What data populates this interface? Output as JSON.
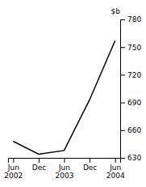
{
  "chart_data": {
    "type": "line",
    "categories": [
      "Jun\n2002",
      "Dec",
      "Jun\n2003",
      "Dec",
      "Jun\n2004"
    ],
    "values": [
      648,
      634,
      638,
      693,
      757
    ],
    "color": "#000000",
    "ylabel": "$b",
    "ylim": [
      630,
      780
    ],
    "yticks": [
      630,
      660,
      690,
      720,
      750,
      780
    ],
    "grid": false
  }
}
